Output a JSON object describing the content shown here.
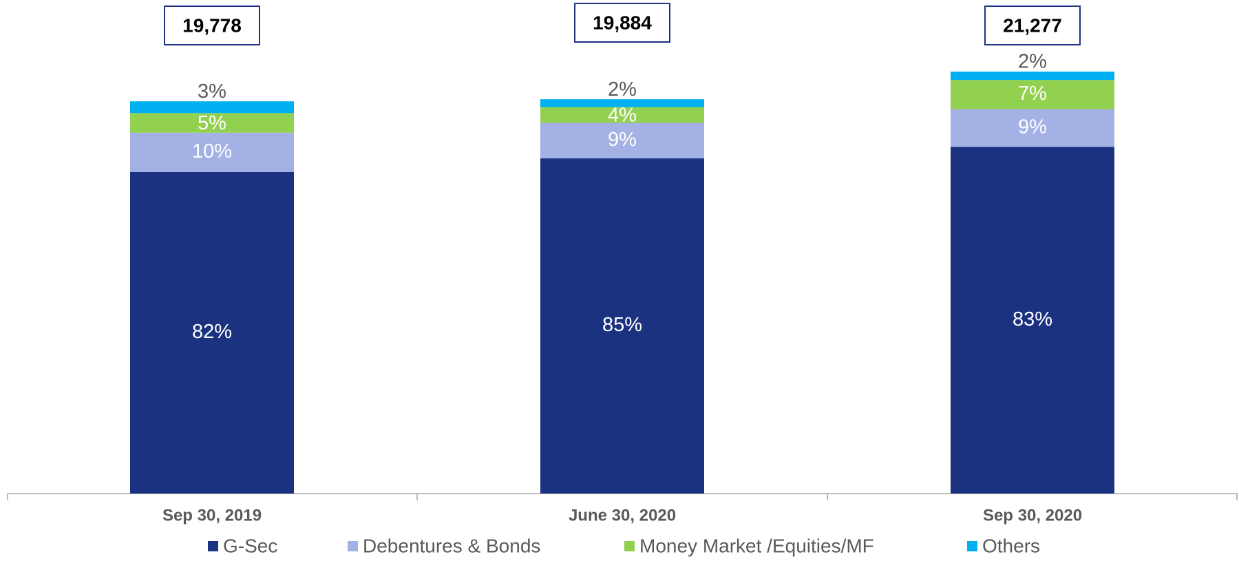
{
  "chart_data": {
    "type": "stacked_bar",
    "categories": [
      "Sep 30, 2019",
      "June 30, 2020",
      "Sep 30, 2020"
    ],
    "totals": {
      "values": [
        19778,
        19884,
        21277
      ],
      "value_labels": [
        "19,778",
        "19,884",
        "21,277"
      ]
    },
    "series": [
      {
        "name": "G-Sec",
        "color": "#1b3281",
        "values": [
          82,
          85,
          83
        ],
        "value_labels": [
          "82%",
          "85%",
          "83%"
        ]
      },
      {
        "name": "Debentures & Bonds",
        "color": "#a3b1e4",
        "values": [
          10,
          9,
          9
        ],
        "value_labels": [
          "10%",
          "9%",
          "9%"
        ]
      },
      {
        "name": "Money Market /Equities/MF",
        "color": "#92d050",
        "values": [
          5,
          4,
          7
        ],
        "value_labels": [
          "5%",
          "4%",
          "7%"
        ]
      },
      {
        "name": "Others",
        "color": "#00b0f0",
        "values": [
          3,
          2,
          2
        ],
        "value_labels": [
          "3%",
          "2%",
          "2%"
        ]
      }
    ]
  }
}
